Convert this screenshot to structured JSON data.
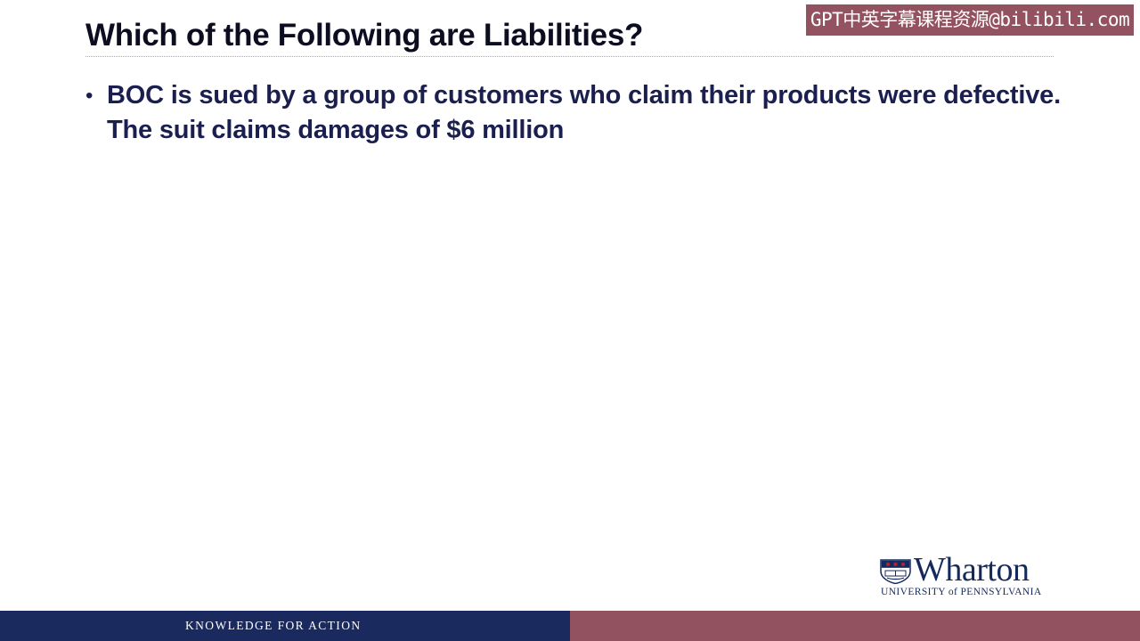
{
  "watermark": {
    "text": "GPT中英字幕课程资源@bilibili.com"
  },
  "slide": {
    "title": "Which of the Following are Liabilities?",
    "bullets": [
      {
        "marker": "•",
        "text": "BOC is sued by a group of customers who claim their products were defective.  The suit claims damages of $6 million"
      }
    ]
  },
  "logo": {
    "name": "Wharton",
    "subtitle": "UNIVERSITY of PENNSYLVANIA"
  },
  "footer": {
    "tagline": "KNOWLEDGE FOR ACTION"
  },
  "colors": {
    "footer_left": "#1b2a5e",
    "footer_right": "#93525f",
    "title_text": "#0d0d22",
    "body_text": "#1b1f4f",
    "logo_navy": "#152a5c",
    "logo_red": "#a4243b"
  },
  "icons": {
    "logo_mark": "penn-shield-icon"
  }
}
